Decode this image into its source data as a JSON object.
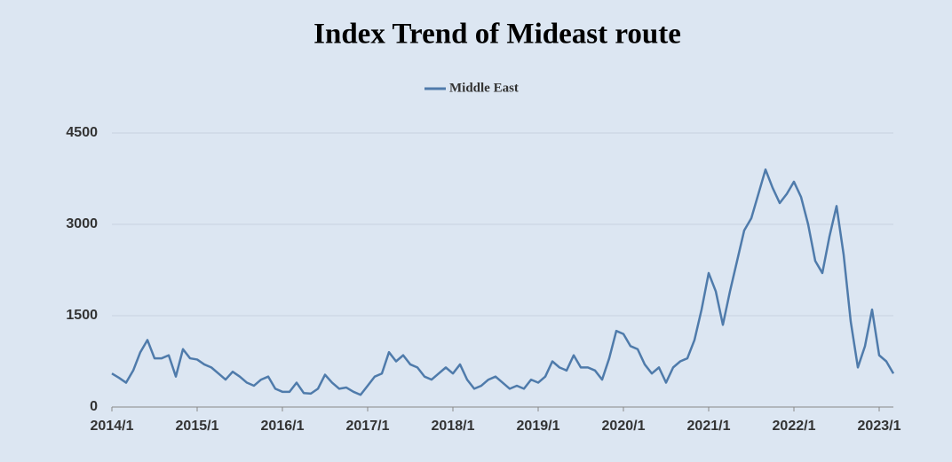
{
  "chart_data": {
    "type": "line",
    "title": "Index Trend of Mideast route",
    "categories": [
      "2014/1",
      null,
      null,
      null,
      null,
      null,
      null,
      null,
      null,
      null,
      null,
      null,
      "2015/1",
      null,
      null,
      null,
      null,
      null,
      null,
      null,
      null,
      null,
      null,
      null,
      "2016/1",
      null,
      null,
      null,
      null,
      null,
      null,
      null,
      null,
      null,
      null,
      null,
      "2017/1",
      null,
      null,
      null,
      null,
      null,
      null,
      null,
      null,
      null,
      null,
      null,
      "2018/1",
      null,
      null,
      null,
      null,
      null,
      null,
      null,
      null,
      null,
      null,
      null,
      "2019/1",
      null,
      null,
      null,
      null,
      null,
      null,
      null,
      null,
      null,
      null,
      null,
      "2020/1",
      null,
      null,
      null,
      null,
      null,
      null,
      null,
      null,
      null,
      null,
      null,
      "2021/1",
      null,
      null,
      null,
      null,
      null,
      null,
      null,
      null,
      null,
      null,
      null,
      "2022/1",
      null,
      null,
      null,
      null,
      null,
      null,
      null,
      null,
      null,
      null,
      null,
      "2023/1",
      null,
      null
    ],
    "series": [
      {
        "name": "Middle East",
        "color": "#4f7bab",
        "values": [
          550,
          480,
          400,
          600,
          900,
          1100,
          800,
          800,
          850,
          500,
          950,
          800,
          780,
          700,
          650,
          550,
          450,
          580,
          500,
          400,
          350,
          450,
          500,
          300,
          250,
          250,
          400,
          230,
          220,
          300,
          530,
          400,
          300,
          320,
          250,
          200,
          350,
          500,
          550,
          900,
          750,
          850,
          700,
          650,
          500,
          450,
          550,
          650,
          550,
          700,
          450,
          300,
          350,
          450,
          500,
          400,
          300,
          350,
          300,
          450,
          400,
          500,
          750,
          650,
          600,
          850,
          650,
          650,
          600,
          450,
          800,
          1250,
          1200,
          1000,
          950,
          700,
          550,
          650,
          400,
          650,
          750,
          800,
          1100,
          1600,
          2200,
          1900,
          1350,
          1900,
          2400,
          2900,
          3100,
          3500,
          3900,
          3600,
          3350,
          3500,
          3700,
          3450,
          3000,
          2400,
          2200,
          2800,
          3300,
          2500,
          1400,
          650,
          1000,
          1600,
          850,
          750,
          550
        ]
      }
    ],
    "ylim": [
      0,
      4500
    ],
    "yticks": [
      0,
      1500,
      3000,
      4500
    ],
    "grid": true,
    "legend": "top"
  }
}
